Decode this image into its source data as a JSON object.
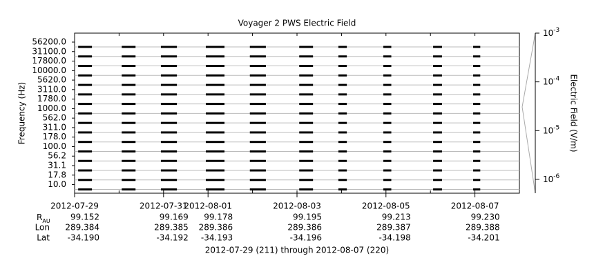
{
  "chart_data": {
    "type": "stackplot",
    "title": "Voyager 2 PWS Electric Field",
    "y_label": "Frequency (Hz)",
    "y2_label": "Electric Field (V/m)",
    "categories": [
      "56200.0",
      "31100.0",
      "17800.0",
      "10000.0",
      "5620.0",
      "3110.0",
      "1780.0",
      "1000.0",
      "562.0",
      "311.0",
      "178.0",
      "100.0",
      "56.2",
      "31.1",
      "17.8",
      "10.0"
    ],
    "xlim": [
      211,
      221
    ],
    "xticks": [
      {
        "value": 211,
        "label": "2012-07-29"
      },
      {
        "value": 213,
        "label": "2012-07-31"
      },
      {
        "value": 214,
        "label": "2012-08-01"
      },
      {
        "value": 216,
        "label": "2012-08-03"
      },
      {
        "value": 218,
        "label": "2012-08-05"
      },
      {
        "value": 220,
        "label": "2012-08-07"
      }
    ],
    "segments": [
      [
        211.08,
        211.39
      ],
      [
        212.06,
        212.37
      ],
      [
        212.94,
        213.3
      ],
      [
        213.95,
        214.37
      ],
      [
        214.94,
        215.3
      ],
      [
        216.05,
        216.36
      ],
      [
        216.93,
        217.12
      ],
      [
        217.94,
        218.12
      ],
      [
        219.06,
        219.26
      ],
      [
        219.96,
        220.12
      ]
    ],
    "color": "#000000",
    "y2lim": [
      5.2e-07,
      0.001
    ],
    "y2_log": true,
    "y2ticks": [
      {
        "value": 0.001,
        "label": "10",
        "exponent": "-3"
      },
      {
        "value": 0.0001,
        "label": "10",
        "exponent": "-4"
      },
      {
        "value": 1e-05,
        "label": "10",
        "exponent": "-5"
      },
      {
        "value": 1e-06,
        "label": "10",
        "exponent": "-6"
      }
    ],
    "ephemeris": {
      "labels": [
        {
          "text": "R",
          "sub": "AU"
        },
        {
          "text": "Lon"
        },
        {
          "text": "Lat"
        }
      ],
      "rows": [
        [
          "99.152",
          "99.169",
          "99.178",
          "99.195",
          "99.213",
          "99.230"
        ],
        [
          "289.384",
          "289.385",
          "289.386",
          "289.386",
          "289.387",
          "289.388"
        ],
        [
          "-34.190",
          "-34.192",
          "-34.193",
          "-34.196",
          "-34.198",
          "-34.201"
        ]
      ]
    },
    "footer": "2012-07-29 (211) through 2012-08-07 (220)"
  }
}
